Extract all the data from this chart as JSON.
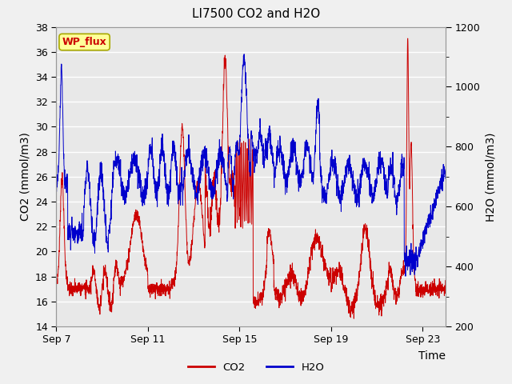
{
  "title": "LI7500 CO2 and H2O",
  "xlabel": "Time",
  "ylabel_left": "CO2 (mmol/m3)",
  "ylabel_right": "H2O (mmol/m3)",
  "xlim_days": [
    0,
    17
  ],
  "ylim_left": [
    14,
    38
  ],
  "ylim_right": [
    200,
    1200
  ],
  "x_ticks_labels": [
    "Sep 7",
    "Sep 11",
    "Sep 15",
    "Sep 19",
    "Sep 23"
  ],
  "x_ticks_days": [
    0,
    4,
    8,
    12,
    16
  ],
  "y_ticks_left": [
    14,
    16,
    18,
    20,
    22,
    24,
    26,
    28,
    30,
    32,
    34,
    36,
    38
  ],
  "y_ticks_right": [
    200,
    300,
    400,
    500,
    600,
    700,
    800,
    900,
    1000,
    1100,
    1200
  ],
  "y_ticks_right_major": [
    200,
    400,
    600,
    800,
    1000,
    1200
  ],
  "co2_color": "#cc0000",
  "h2o_color": "#0000cc",
  "background_color": "#f0f0f0",
  "plot_bg_color": "#e8e8e8",
  "annotation_text": "WP_flux",
  "annotation_color": "#cc0000",
  "annotation_bg": "#ffff99",
  "legend_co2": "CO2",
  "legend_h2o": "H2O",
  "title_fontsize": 11,
  "axis_fontsize": 10,
  "tick_fontsize": 9
}
